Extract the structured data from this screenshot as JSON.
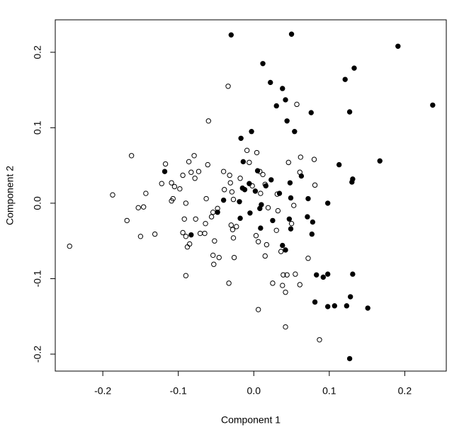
{
  "chart_data": {
    "type": "scatter",
    "x_label": "Component 1",
    "y_label": "Component 2",
    "xlim": [
      -0.263,
      0.255
    ],
    "ylim": [
      -0.2225,
      0.243
    ],
    "xticks": [
      -0.2,
      -0.1,
      {
        "value": 0,
        "label": "0.0"
      },
      0.1,
      0.2
    ],
    "yticks": [
      -0.2,
      -0.1,
      {
        "value": 0,
        "label": "0.0"
      },
      0.1,
      0.2
    ],
    "grid": false,
    "series": [
      {
        "color": "#000000",
        "marker": "filled",
        "x": [
          -0.03,
          0.05,
          0.191,
          0.012,
          0.022,
          0.121,
          0.133,
          0.237,
          0.038,
          0.03,
          0.042,
          0.127,
          -0.017,
          -0.003,
          0.044,
          0.054,
          0.076,
          0.113,
          0.167,
          0.131,
          0.13,
          -0.118,
          -0.014,
          0.005,
          -0.006,
          -0.012,
          0.016,
          0.023,
          0.063,
          0.048,
          0.034,
          0.002,
          -0.015,
          0.049,
          0.072,
          0.098,
          0.01,
          0.008,
          -0.019,
          -0.04,
          -0.005,
          0.009,
          -0.083,
          0.025,
          0.047,
          0.049,
          0.071,
          0.078,
          0.077,
          0.038,
          0.042,
          0.083,
          0.092,
          0.098,
          0.131,
          0.081,
          0.098,
          0.107,
          0.123,
          0.128,
          0.151,
          0.127,
          -0.018,
          -0.048
        ],
        "y": [
          0.223,
          0.224,
          0.208,
          0.185,
          0.16,
          0.164,
          0.179,
          0.13,
          0.152,
          0.129,
          0.137,
          0.121,
          0.086,
          0.095,
          0.109,
          0.095,
          0.12,
          0.051,
          0.056,
          0.032,
          0.028,
          0.042,
          0.055,
          0.043,
          0.026,
          0.018,
          0.023,
          0.031,
          0.036,
          0.027,
          0.013,
          0.016,
          0.02,
          0.007,
          0.006,
          0.0,
          -0.002,
          -0.007,
          0.002,
          0.004,
          -0.013,
          -0.033,
          -0.042,
          -0.023,
          -0.021,
          -0.034,
          -0.018,
          -0.025,
          -0.041,
          -0.056,
          -0.062,
          -0.095,
          -0.098,
          -0.094,
          -0.094,
          -0.131,
          -0.137,
          -0.136,
          -0.136,
          -0.124,
          -0.139,
          -0.206,
          -0.02,
          -0.012
        ]
      },
      {
        "color": "#000000",
        "marker": "open",
        "x": [
          -0.244,
          -0.187,
          -0.162,
          -0.168,
          -0.153,
          -0.146,
          -0.143,
          -0.15,
          -0.131,
          -0.122,
          -0.117,
          -0.109,
          -0.105,
          -0.109,
          -0.107,
          -0.098,
          -0.086,
          -0.079,
          -0.083,
          -0.094,
          -0.078,
          -0.073,
          -0.09,
          -0.092,
          -0.077,
          -0.094,
          -0.09,
          -0.088,
          -0.085,
          -0.09,
          -0.071,
          -0.065,
          -0.064,
          -0.061,
          -0.06,
          -0.063,
          -0.056,
          -0.054,
          -0.052,
          -0.054,
          -0.053,
          -0.046,
          -0.048,
          -0.04,
          -0.039,
          -0.034,
          -0.032,
          -0.031,
          -0.029,
          -0.027,
          -0.03,
          -0.028,
          -0.023,
          -0.027,
          -0.026,
          -0.033,
          -0.018,
          -0.009,
          -0.006,
          -0.002,
          0.004,
          0.008,
          0.009,
          0.003,
          0.006,
          0.006,
          0.012,
          0.015,
          0.019,
          0.015,
          0.017,
          0.025,
          0.03,
          0.031,
          0.032,
          0.036,
          0.038,
          0.039,
          0.044,
          0.042,
          0.042,
          0.046,
          0.05,
          0.053,
          0.055,
          0.057,
          0.061,
          0.061,
          0.062,
          0.072,
          0.08,
          0.081,
          0.087
        ],
        "y": [
          -0.057,
          0.011,
          0.063,
          -0.023,
          -0.006,
          -0.005,
          0.013,
          -0.044,
          -0.041,
          0.026,
          0.052,
          0.027,
          0.022,
          0.003,
          0.006,
          0.019,
          0.055,
          0.063,
          0.041,
          0.037,
          0.033,
          0.042,
          0.0,
          -0.021,
          -0.021,
          -0.039,
          -0.044,
          -0.058,
          -0.054,
          -0.096,
          -0.04,
          -0.04,
          -0.027,
          0.051,
          0.109,
          0.006,
          -0.018,
          -0.012,
          -0.05,
          -0.069,
          -0.081,
          -0.072,
          -0.007,
          0.042,
          0.018,
          0.155,
          0.037,
          0.027,
          0.015,
          0.005,
          -0.029,
          -0.035,
          -0.031,
          -0.046,
          -0.072,
          -0.106,
          0.033,
          0.07,
          0.054,
          0.023,
          0.067,
          0.042,
          0.013,
          -0.043,
          -0.051,
          -0.141,
          0.038,
          0.025,
          -0.006,
          -0.07,
          -0.055,
          -0.106,
          -0.036,
          0.012,
          -0.01,
          -0.064,
          -0.109,
          -0.095,
          -0.095,
          -0.118,
          -0.164,
          0.054,
          -0.027,
          -0.003,
          -0.094,
          0.131,
          -0.108,
          0.041,
          0.061,
          -0.073,
          0.058,
          0.024,
          -0.181
        ]
      }
    ]
  }
}
